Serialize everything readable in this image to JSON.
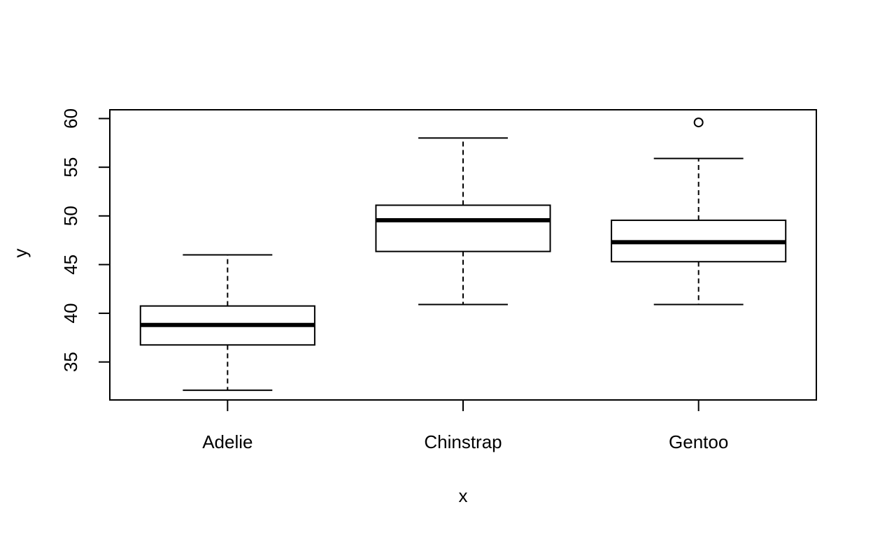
{
  "chart_data": {
    "type": "box",
    "title": "",
    "xlabel": "x",
    "ylabel": "y",
    "categories": [
      "Adelie",
      "Chinstrap",
      "Gentoo"
    ],
    "yticks": [
      35,
      40,
      45,
      50,
      55,
      60
    ],
    "ylim": [
      31.1,
      60.9
    ],
    "grid": false,
    "boxes": [
      {
        "category": "Adelie",
        "whisker_low": 32.1,
        "q1": 36.75,
        "median": 38.8,
        "q3": 40.75,
        "whisker_high": 46.0,
        "outliers": []
      },
      {
        "category": "Chinstrap",
        "whisker_low": 40.9,
        "q1": 46.35,
        "median": 49.55,
        "q3": 51.1,
        "whisker_high": 58.0,
        "outliers": []
      },
      {
        "category": "Gentoo",
        "whisker_low": 40.9,
        "q1": 45.3,
        "median": 47.3,
        "q3": 49.55,
        "whisker_high": 55.9,
        "outliers": [
          59.6
        ]
      }
    ]
  }
}
